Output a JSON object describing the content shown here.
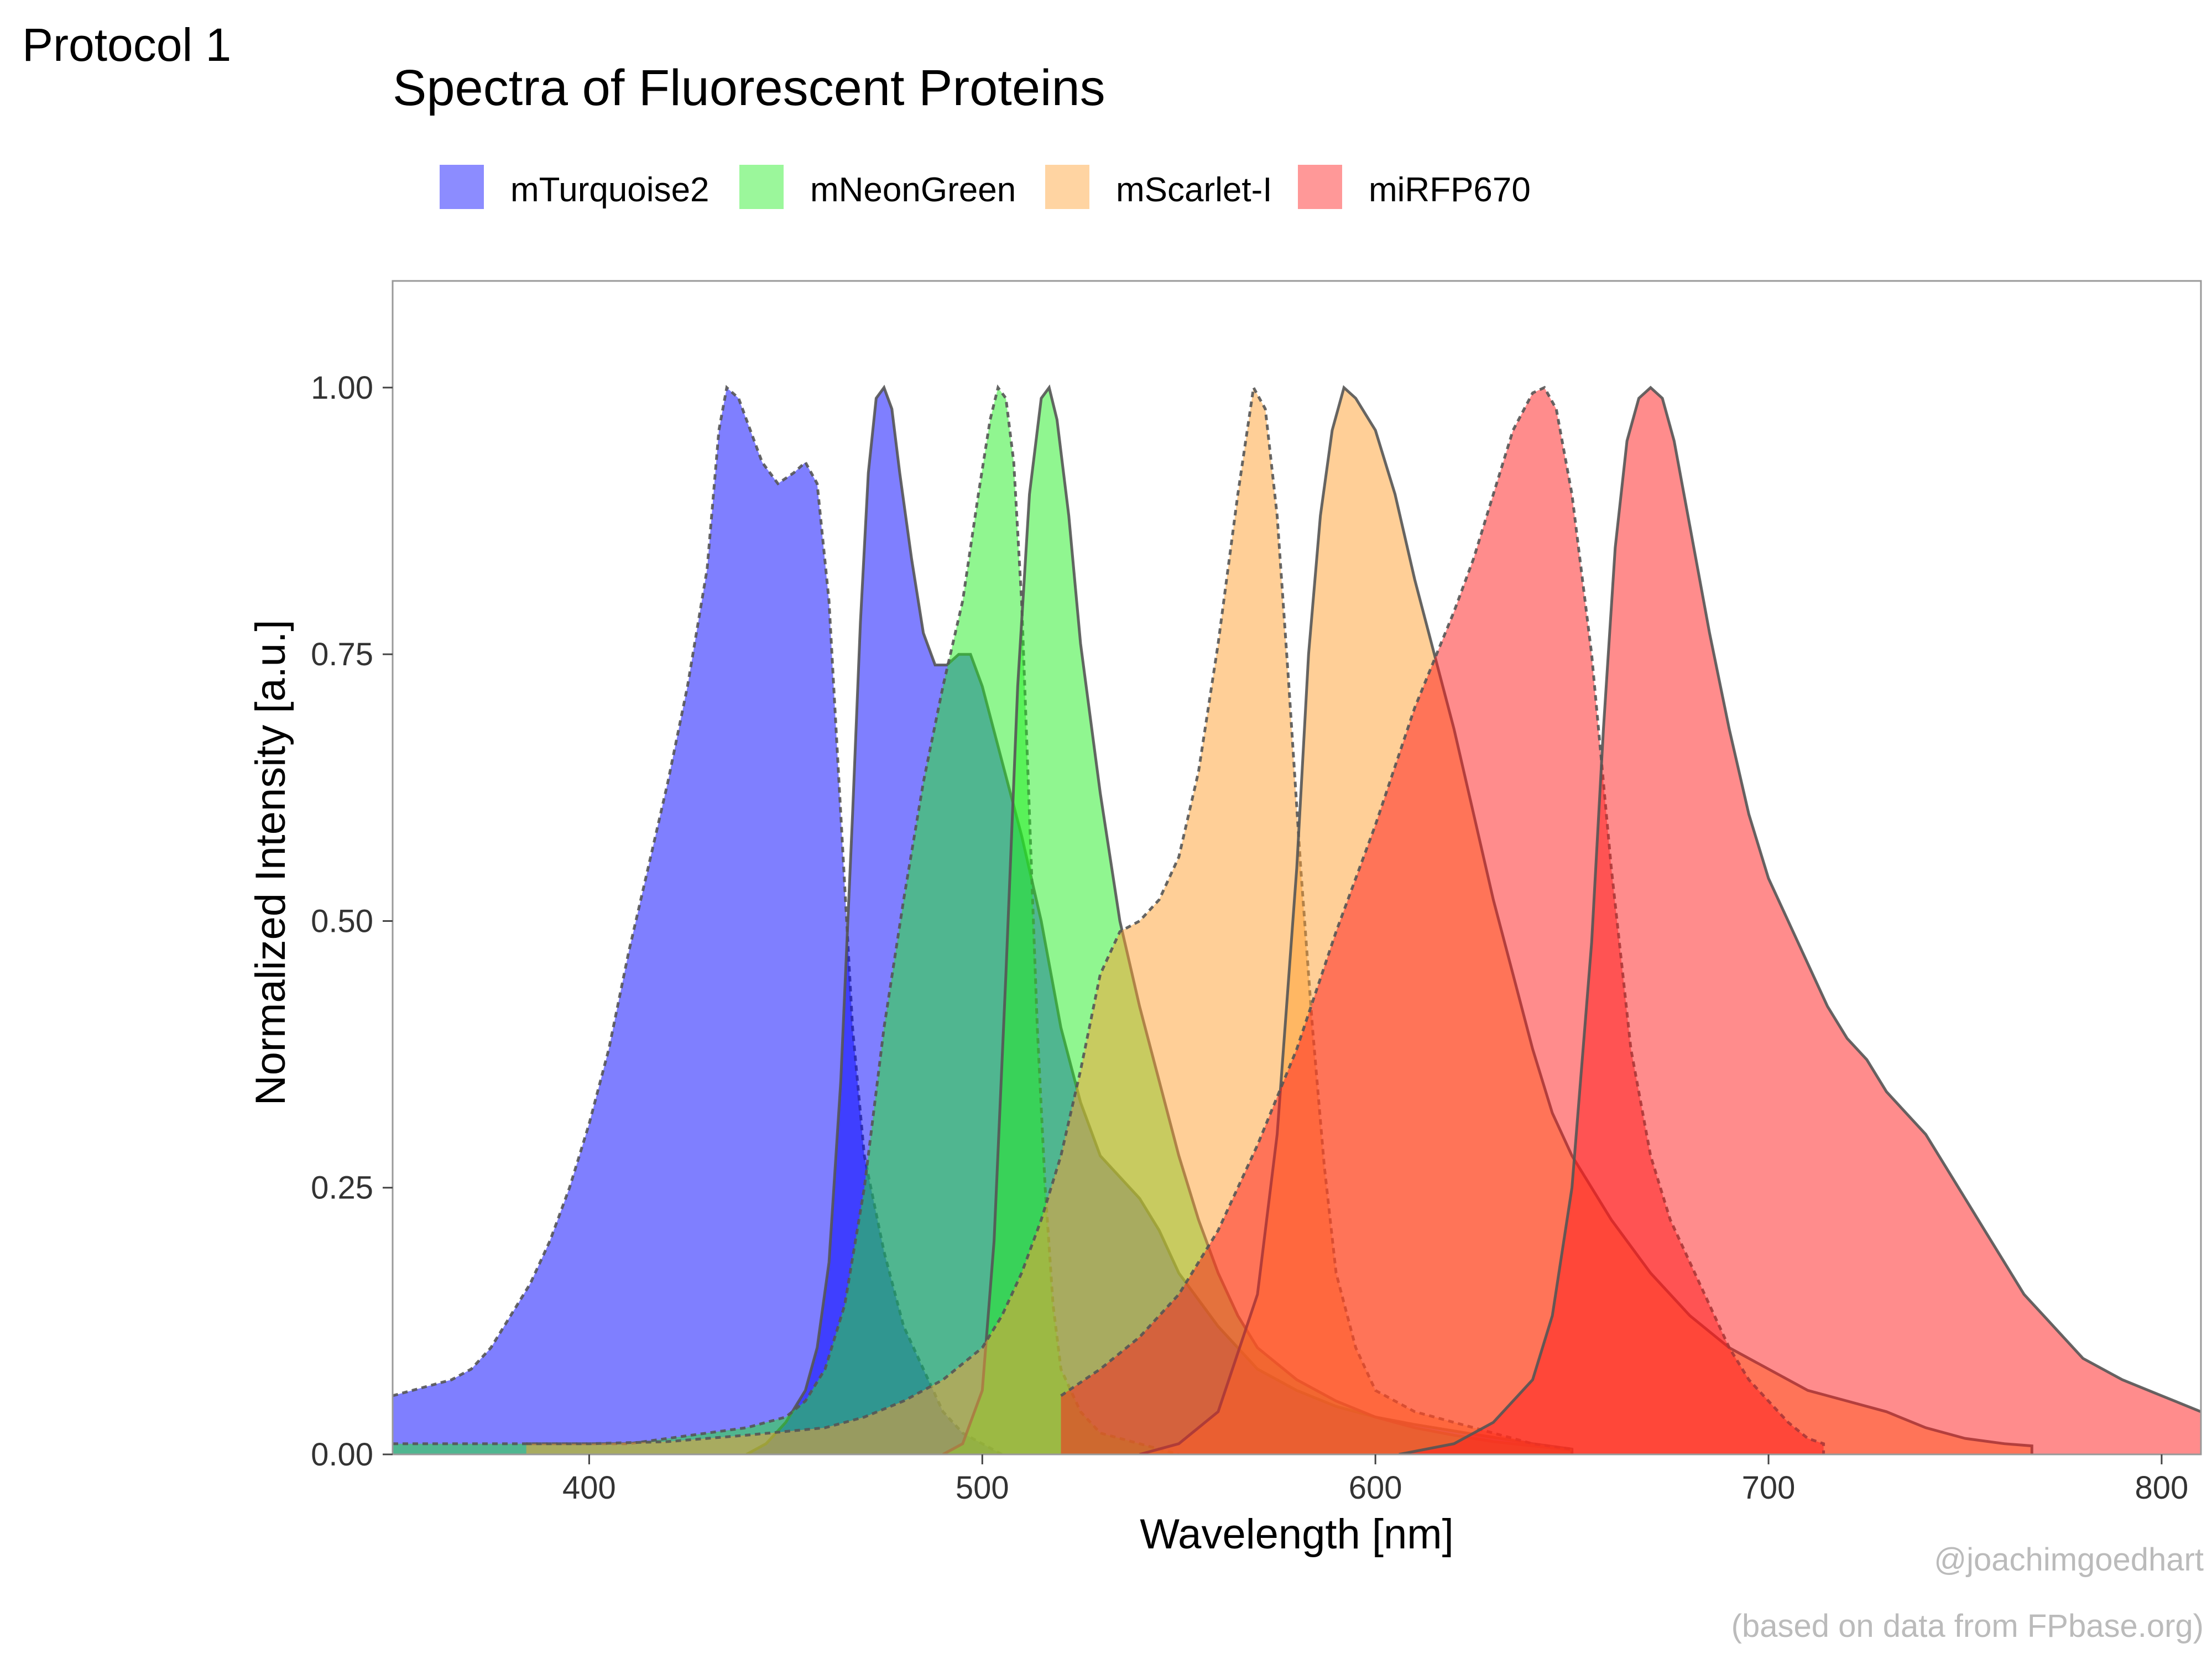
{
  "corner_label": "Protocol 1",
  "credits": {
    "line1": "@joachimgoedhart",
    "line2": "(based on data from FPbase.org)"
  },
  "chart_data": {
    "type": "area",
    "title": "Spectra of Fluorescent Proteins",
    "xlabel": "Wavelength [nm]",
    "ylabel": "Normalized Intensity [a.u.]",
    "xlim": [
      350,
      810
    ],
    "ylim": [
      0,
      1.1
    ],
    "x_ticks": [
      400,
      500,
      600,
      700,
      800
    ],
    "y_ticks": [
      0,
      0.25,
      0.5,
      0.75,
      1.0
    ],
    "y_tick_labels": [
      "0.00",
      "0.25",
      "0.50",
      "0.75",
      "1.00"
    ],
    "grid": false,
    "legend_position": "top-left",
    "legend": [
      {
        "name": "mTurquoise2",
        "color": "#0000FF"
      },
      {
        "name": "mNeonGreen",
        "color": "#22EE22"
      },
      {
        "name": "mScarlet-I",
        "color": "#FFA030"
      },
      {
        "name": "miRFP670",
        "color": "#FF1A1A"
      }
    ],
    "series": [
      {
        "protein": "mTurquoise2",
        "spectrum": "excitation",
        "line": "dashed",
        "fill": "#0000FF",
        "fill_opacity": 0.5,
        "points": [
          [
            350,
            0.055
          ],
          [
            355,
            0.06
          ],
          [
            360,
            0.065
          ],
          [
            365,
            0.07
          ],
          [
            370,
            0.08
          ],
          [
            375,
            0.1
          ],
          [
            380,
            0.13
          ],
          [
            385,
            0.16
          ],
          [
            390,
            0.2
          ],
          [
            395,
            0.25
          ],
          [
            400,
            0.31
          ],
          [
            405,
            0.38
          ],
          [
            410,
            0.47
          ],
          [
            415,
            0.55
          ],
          [
            420,
            0.63
          ],
          [
            425,
            0.72
          ],
          [
            430,
            0.83
          ],
          [
            433,
            0.96
          ],
          [
            435,
            1.0
          ],
          [
            438,
            0.99
          ],
          [
            441,
            0.96
          ],
          [
            444,
            0.93
          ],
          [
            448,
            0.91
          ],
          [
            452,
            0.92
          ],
          [
            455,
            0.93
          ],
          [
            458,
            0.91
          ],
          [
            461,
            0.8
          ],
          [
            464,
            0.6
          ],
          [
            467,
            0.4
          ],
          [
            470,
            0.28
          ],
          [
            475,
            0.19
          ],
          [
            480,
            0.12
          ],
          [
            485,
            0.08
          ],
          [
            490,
            0.04
          ],
          [
            495,
            0.02
          ],
          [
            500,
            0.01
          ],
          [
            505,
            0.0
          ]
        ]
      },
      {
        "protein": "mTurquoise2",
        "spectrum": "emission",
        "line": "solid",
        "fill": "#0000FF",
        "fill_opacity": 0.5,
        "points": [
          [
            440,
            0.0
          ],
          [
            445,
            0.01
          ],
          [
            450,
            0.03
          ],
          [
            455,
            0.06
          ],
          [
            458,
            0.1
          ],
          [
            461,
            0.18
          ],
          [
            464,
            0.35
          ],
          [
            467,
            0.6
          ],
          [
            469,
            0.78
          ],
          [
            471,
            0.92
          ],
          [
            473,
            0.99
          ],
          [
            475,
            1.0
          ],
          [
            477,
            0.98
          ],
          [
            479,
            0.92
          ],
          [
            482,
            0.84
          ],
          [
            485,
            0.77
          ],
          [
            488,
            0.74
          ],
          [
            491,
            0.74
          ],
          [
            494,
            0.75
          ],
          [
            497,
            0.75
          ],
          [
            500,
            0.72
          ],
          [
            505,
            0.65
          ],
          [
            510,
            0.58
          ],
          [
            515,
            0.5
          ],
          [
            520,
            0.4
          ],
          [
            525,
            0.33
          ],
          [
            530,
            0.28
          ],
          [
            535,
            0.26
          ],
          [
            540,
            0.24
          ],
          [
            545,
            0.21
          ],
          [
            550,
            0.17
          ],
          [
            560,
            0.12
          ],
          [
            570,
            0.08
          ],
          [
            580,
            0.06
          ],
          [
            590,
            0.045
          ],
          [
            600,
            0.035
          ],
          [
            610,
            0.028
          ],
          [
            620,
            0.022
          ],
          [
            630,
            0.016
          ],
          [
            640,
            0.01
          ],
          [
            650,
            0.005
          ],
          [
            650,
            0.0
          ]
        ]
      },
      {
        "protein": "mNeonGreen",
        "spectrum": "excitation",
        "line": "dashed",
        "fill": "#22EE22",
        "fill_opacity": 0.5,
        "points": [
          [
            350,
            0.01
          ],
          [
            360,
            0.01
          ],
          [
            370,
            0.01
          ],
          [
            380,
            0.01
          ],
          [
            390,
            0.01
          ],
          [
            400,
            0.01
          ],
          [
            410,
            0.01
          ],
          [
            420,
            0.015
          ],
          [
            430,
            0.02
          ],
          [
            440,
            0.025
          ],
          [
            450,
            0.035
          ],
          [
            455,
            0.05
          ],
          [
            460,
            0.08
          ],
          [
            465,
            0.14
          ],
          [
            470,
            0.25
          ],
          [
            475,
            0.4
          ],
          [
            480,
            0.52
          ],
          [
            485,
            0.63
          ],
          [
            490,
            0.72
          ],
          [
            495,
            0.8
          ],
          [
            499,
            0.9
          ],
          [
            502,
            0.97
          ],
          [
            504,
            1.0
          ],
          [
            506,
            0.99
          ],
          [
            508,
            0.93
          ],
          [
            510,
            0.8
          ],
          [
            512,
            0.6
          ],
          [
            514,
            0.4
          ],
          [
            516,
            0.25
          ],
          [
            518,
            0.14
          ],
          [
            520,
            0.08
          ],
          [
            525,
            0.04
          ],
          [
            530,
            0.02
          ],
          [
            540,
            0.01
          ],
          [
            550,
            0.0
          ]
        ]
      },
      {
        "protein": "mNeonGreen",
        "spectrum": "emission",
        "line": "solid",
        "fill": "#22EE22",
        "fill_opacity": 0.5,
        "points": [
          [
            490,
            0.0
          ],
          [
            495,
            0.01
          ],
          [
            500,
            0.06
          ],
          [
            503,
            0.2
          ],
          [
            506,
            0.45
          ],
          [
            509,
            0.72
          ],
          [
            512,
            0.9
          ],
          [
            515,
            0.99
          ],
          [
            517,
            1.0
          ],
          [
            519,
            0.97
          ],
          [
            522,
            0.88
          ],
          [
            525,
            0.76
          ],
          [
            530,
            0.62
          ],
          [
            535,
            0.5
          ],
          [
            540,
            0.42
          ],
          [
            545,
            0.35
          ],
          [
            550,
            0.28
          ],
          [
            555,
            0.22
          ],
          [
            560,
            0.17
          ],
          [
            565,
            0.13
          ],
          [
            570,
            0.1
          ],
          [
            580,
            0.07
          ],
          [
            590,
            0.05
          ],
          [
            600,
            0.035
          ],
          [
            610,
            0.025
          ],
          [
            620,
            0.018
          ],
          [
            630,
            0.012
          ],
          [
            640,
            0.008
          ],
          [
            650,
            0.004
          ],
          [
            650,
            0.0
          ]
        ]
      },
      {
        "protein": "mScarlet-I",
        "spectrum": "excitation",
        "line": "dashed",
        "fill": "#FFA030",
        "fill_opacity": 0.5,
        "points": [
          [
            384,
            0.01
          ],
          [
            400,
            0.01
          ],
          [
            420,
            0.012
          ],
          [
            440,
            0.018
          ],
          [
            460,
            0.025
          ],
          [
            470,
            0.035
          ],
          [
            480,
            0.05
          ],
          [
            490,
            0.07
          ],
          [
            500,
            0.1
          ],
          [
            505,
            0.13
          ],
          [
            510,
            0.17
          ],
          [
            515,
            0.22
          ],
          [
            520,
            0.28
          ],
          [
            525,
            0.36
          ],
          [
            530,
            0.45
          ],
          [
            535,
            0.49
          ],
          [
            540,
            0.5
          ],
          [
            545,
            0.52
          ],
          [
            550,
            0.56
          ],
          [
            555,
            0.64
          ],
          [
            560,
            0.76
          ],
          [
            565,
            0.9
          ],
          [
            569,
            1.0
          ],
          [
            572,
            0.98
          ],
          [
            575,
            0.88
          ],
          [
            578,
            0.72
          ],
          [
            581,
            0.55
          ],
          [
            584,
            0.4
          ],
          [
            587,
            0.27
          ],
          [
            590,
            0.17
          ],
          [
            595,
            0.1
          ],
          [
            600,
            0.06
          ],
          [
            610,
            0.04
          ],
          [
            620,
            0.03
          ],
          [
            630,
            0.02
          ],
          [
            640,
            0.01
          ],
          [
            650,
            0.005
          ],
          [
            650,
            0.0
          ]
        ]
      },
      {
        "protein": "mScarlet-I",
        "spectrum": "emission",
        "line": "solid",
        "fill": "#FFA030",
        "fill_opacity": 0.5,
        "points": [
          [
            540,
            0.0
          ],
          [
            550,
            0.01
          ],
          [
            560,
            0.04
          ],
          [
            570,
            0.15
          ],
          [
            575,
            0.3
          ],
          [
            580,
            0.55
          ],
          [
            583,
            0.75
          ],
          [
            586,
            0.88
          ],
          [
            589,
            0.96
          ],
          [
            592,
            1.0
          ],
          [
            595,
            0.99
          ],
          [
            600,
            0.96
          ],
          [
            605,
            0.9
          ],
          [
            610,
            0.82
          ],
          [
            615,
            0.75
          ],
          [
            620,
            0.68
          ],
          [
            625,
            0.6
          ],
          [
            630,
            0.52
          ],
          [
            635,
            0.45
          ],
          [
            640,
            0.38
          ],
          [
            645,
            0.32
          ],
          [
            650,
            0.28
          ],
          [
            660,
            0.22
          ],
          [
            670,
            0.17
          ],
          [
            680,
            0.13
          ],
          [
            690,
            0.1
          ],
          [
            700,
            0.08
          ],
          [
            710,
            0.06
          ],
          [
            720,
            0.05
          ],
          [
            730,
            0.04
          ],
          [
            740,
            0.025
          ],
          [
            750,
            0.015
          ],
          [
            760,
            0.01
          ],
          [
            767,
            0.008
          ],
          [
            767,
            0.0
          ]
        ]
      },
      {
        "protein": "miRFP670",
        "spectrum": "excitation",
        "line": "dashed",
        "fill": "#FF1A1A",
        "fill_opacity": 0.5,
        "points": [
          [
            520,
            0.055
          ],
          [
            530,
            0.08
          ],
          [
            540,
            0.11
          ],
          [
            550,
            0.15
          ],
          [
            560,
            0.21
          ],
          [
            570,
            0.29
          ],
          [
            580,
            0.38
          ],
          [
            590,
            0.49
          ],
          [
            600,
            0.59
          ],
          [
            610,
            0.7
          ],
          [
            620,
            0.79
          ],
          [
            625,
            0.84
          ],
          [
            630,
            0.9
          ],
          [
            635,
            0.96
          ],
          [
            640,
            0.995
          ],
          [
            643,
            1.0
          ],
          [
            646,
            0.98
          ],
          [
            650,
            0.9
          ],
          [
            655,
            0.75
          ],
          [
            660,
            0.55
          ],
          [
            665,
            0.38
          ],
          [
            670,
            0.28
          ],
          [
            675,
            0.22
          ],
          [
            680,
            0.18
          ],
          [
            685,
            0.14
          ],
          [
            690,
            0.1
          ],
          [
            695,
            0.07
          ],
          [
            700,
            0.05
          ],
          [
            705,
            0.03
          ],
          [
            710,
            0.015
          ],
          [
            714,
            0.01
          ],
          [
            714,
            0.0
          ]
        ]
      },
      {
        "protein": "miRFP670",
        "spectrum": "emission",
        "line": "solid",
        "fill": "#FF1A1A",
        "fill_opacity": 0.5,
        "points": [
          [
            606,
            0.0
          ],
          [
            620,
            0.01
          ],
          [
            630,
            0.03
          ],
          [
            640,
            0.07
          ],
          [
            645,
            0.13
          ],
          [
            650,
            0.25
          ],
          [
            655,
            0.48
          ],
          [
            658,
            0.68
          ],
          [
            661,
            0.85
          ],
          [
            664,
            0.95
          ],
          [
            667,
            0.99
          ],
          [
            670,
            1.0
          ],
          [
            673,
            0.99
          ],
          [
            676,
            0.95
          ],
          [
            680,
            0.87
          ],
          [
            685,
            0.77
          ],
          [
            690,
            0.68
          ],
          [
            695,
            0.6
          ],
          [
            700,
            0.54
          ],
          [
            705,
            0.5
          ],
          [
            710,
            0.46
          ],
          [
            715,
            0.42
          ],
          [
            720,
            0.39
          ],
          [
            725,
            0.37
          ],
          [
            730,
            0.34
          ],
          [
            735,
            0.32
          ],
          [
            740,
            0.3
          ],
          [
            745,
            0.27
          ],
          [
            750,
            0.24
          ],
          [
            755,
            0.21
          ],
          [
            760,
            0.18
          ],
          [
            765,
            0.15
          ],
          [
            770,
            0.13
          ],
          [
            775,
            0.11
          ],
          [
            780,
            0.09
          ],
          [
            790,
            0.07
          ],
          [
            800,
            0.055
          ],
          [
            810,
            0.04
          ]
        ]
      }
    ]
  }
}
